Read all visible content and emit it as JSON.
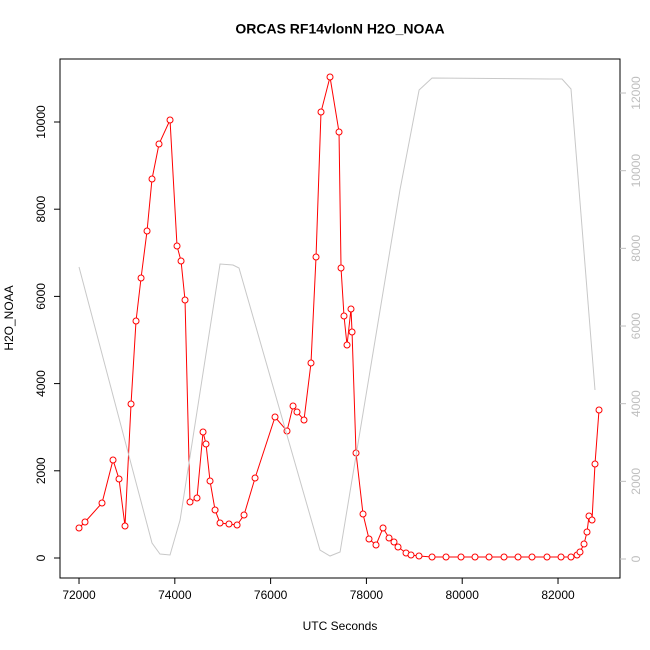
{
  "chart_data": {
    "type": "line",
    "title": "ORCAS RF14vlonN H2O_NOAA",
    "x_label": "UTC Seconds",
    "y_label": "H2O_NOAA",
    "xlim": [
      71603,
      83294
    ],
    "xticks": [
      72000,
      74000,
      76000,
      78000,
      80000,
      82000
    ],
    "ylim": [
      -459,
      11445
    ],
    "yticks": [
      0,
      2000,
      4000,
      6000,
      8000,
      10000
    ],
    "y2lim": [
      -489,
      12876
    ],
    "y2ticks": [
      0,
      2000,
      4000,
      6000,
      8000,
      10000,
      12000
    ],
    "y2_tick_color": "#bebebe",
    "series": [
      {
        "color": "red",
        "markers": true,
        "x": [
          72000,
          72125,
          72480,
          72710,
          72835,
          72960,
          73086,
          73190,
          73295,
          73420,
          73524,
          73670,
          73900,
          74046,
          74130,
          74213,
          74317,
          74463,
          74589,
          74651,
          74735,
          74840,
          74944,
          75131,
          75300,
          75445,
          75675,
          76092,
          76342,
          76468,
          76551,
          76697,
          76843,
          76948,
          77052,
          77240,
          77428,
          77470,
          77532,
          77595,
          77678,
          77700,
          77783,
          77929,
          78054,
          78200,
          78347,
          78472,
          78576,
          78660,
          78827,
          78931,
          79098,
          79370,
          79662,
          79975,
          80267,
          80560,
          80873,
          81165,
          81457,
          81770,
          82063,
          82271,
          82397,
          82459,
          82543,
          82605,
          82647,
          82710,
          82772,
          82856
        ],
        "values": [
          688,
          826,
          1261,
          2248,
          1812,
          734,
          3532,
          5436,
          6422,
          7500,
          8693,
          9495,
          10046,
          7156,
          6812,
          5917,
          1284,
          1376,
          2890,
          2615,
          1766,
          1101,
          803,
          780,
          757,
          986,
          1835,
          3234,
          2913,
          3486,
          3349,
          3165,
          4472,
          6904,
          10229,
          11032,
          9771,
          6651,
          5550,
          4885,
          5711,
          5183,
          2408,
          1009,
          436,
          298,
          688,
          459,
          367,
          252,
          115,
          69,
          46,
          23,
          23,
          23,
          23,
          23,
          23,
          23,
          23,
          23,
          23,
          23,
          69,
          138,
          321,
          596,
          963,
          872,
          2156,
          3394
        ]
      },
      {
        "color": "#c8c8c8",
        "markers": false,
        "axis": "y2",
        "x": [
          72000,
          73524,
          73690,
          73900,
          74110,
          74944,
          75215,
          75340,
          77030,
          77240,
          77450,
          78700,
          79100,
          79370,
          81833,
          82084,
          82271,
          82772
        ],
        "values": [
          7520,
          412,
          129,
          103,
          1004,
          7597,
          7571,
          7494,
          232,
          77,
          180,
          9503,
          12078,
          12387,
          12361,
          12361,
          12104,
          4352
        ]
      }
    ]
  }
}
